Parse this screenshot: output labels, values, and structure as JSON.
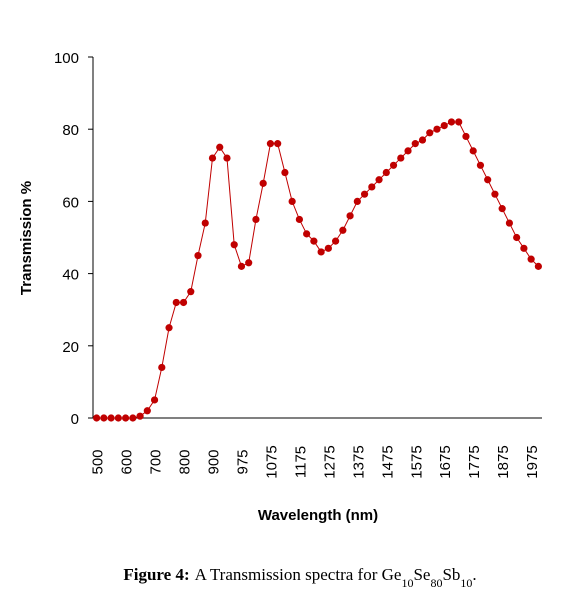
{
  "chart_data": {
    "type": "line",
    "categories": [
      "500",
      null,
      null,
      null,
      "600",
      null,
      null,
      null,
      "700",
      null,
      null,
      null,
      "800",
      null,
      null,
      null,
      "900",
      null,
      null,
      null,
      "975",
      null,
      null,
      null,
      "1075",
      null,
      null,
      null,
      "1175",
      null,
      null,
      null,
      "1275",
      null,
      null,
      null,
      "1375",
      null,
      null,
      null,
      "1475",
      null,
      null,
      null,
      "1575",
      null,
      null,
      null,
      "1675",
      null,
      null,
      null,
      "1775",
      null,
      null,
      null,
      "1875",
      null,
      null,
      null,
      "1975",
      null
    ],
    "series": [
      {
        "name": "Transmission",
        "color": "#c00000",
        "values": [
          0,
          0,
          0,
          0,
          0,
          0,
          0.5,
          2,
          5,
          14,
          25,
          32,
          32,
          35,
          45,
          54,
          72,
          75,
          72,
          48,
          42,
          43,
          55,
          65,
          76,
          76,
          68,
          60,
          55,
          51,
          49,
          46,
          47,
          49,
          52,
          56,
          60,
          62,
          64,
          66,
          68,
          70,
          72,
          74,
          76,
          77,
          79,
          80,
          81,
          82,
          82,
          78,
          74,
          70,
          66,
          62,
          58,
          54,
          50,
          47,
          44,
          42
        ]
      }
    ],
    "xlabel": "Wavelength (nm)",
    "ylabel": "Transmission %",
    "ylim": [
      0,
      100
    ],
    "yticks": [
      0,
      20,
      40,
      60,
      80,
      100
    ],
    "caption": {
      "label": "Figure 4:",
      "parts": [
        "A Transmission spectra for Ge",
        "10",
        "Se",
        "80",
        "Sb",
        "10",
        "."
      ]
    }
  }
}
